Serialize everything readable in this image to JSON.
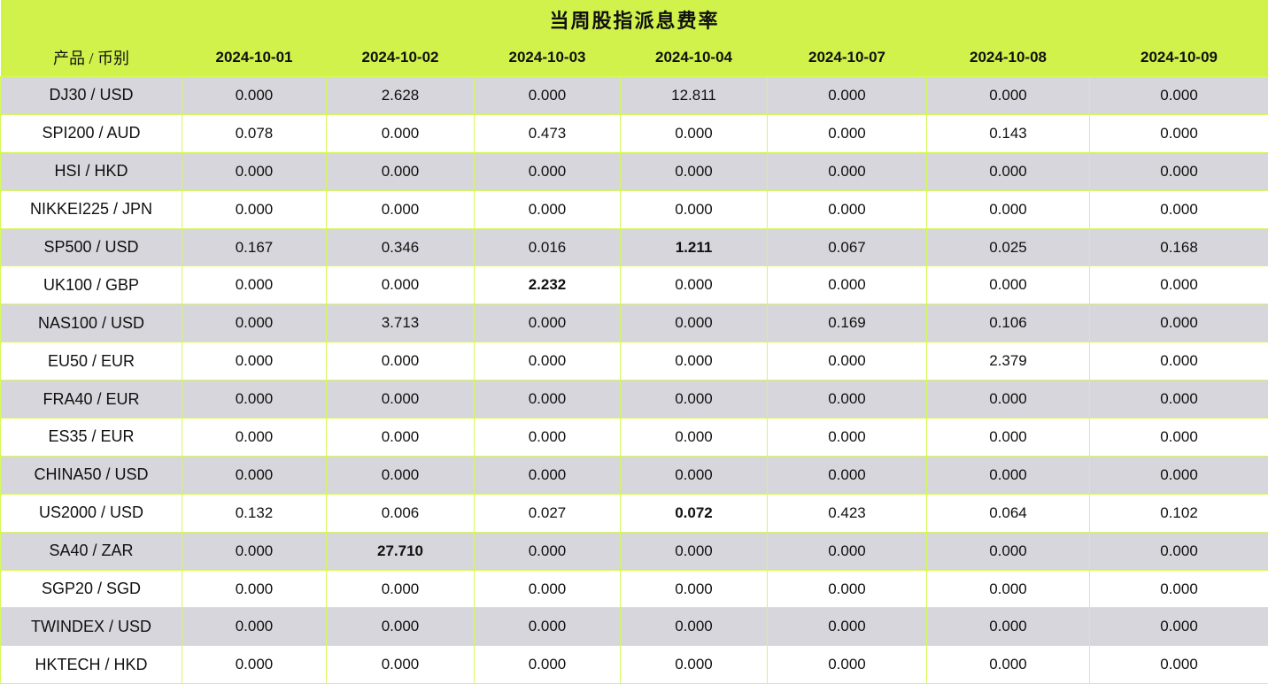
{
  "colors": {
    "header_background": "#d0f24b",
    "grid_line": "#d6f957",
    "row_alt_background": "#d6d6dc",
    "row_background": "#ffffff",
    "text": "#111111"
  },
  "chart_data": {
    "type": "table",
    "title": "当周股指派息费率",
    "columns": [
      "产品 / 币别",
      "2024-10-01",
      "2024-10-02",
      "2024-10-03",
      "2024-10-04",
      "2024-10-07",
      "2024-10-08",
      "2024-10-09"
    ],
    "rows": [
      {
        "product": "DJ30 / USD",
        "values": [
          "0.000",
          "2.628",
          "0.000",
          "12.811",
          "0.000",
          "0.000",
          "0.000"
        ],
        "bold": []
      },
      {
        "product": "SPI200 / AUD",
        "values": [
          "0.078",
          "0.000",
          "0.473",
          "0.000",
          "0.000",
          "0.143",
          "0.000"
        ],
        "bold": []
      },
      {
        "product": "HSI / HKD",
        "values": [
          "0.000",
          "0.000",
          "0.000",
          "0.000",
          "0.000",
          "0.000",
          "0.000"
        ],
        "bold": []
      },
      {
        "product": "NIKKEI225 / JPN",
        "values": [
          "0.000",
          "0.000",
          "0.000",
          "0.000",
          "0.000",
          "0.000",
          "0.000"
        ],
        "bold": []
      },
      {
        "product": "SP500 / USD",
        "values": [
          "0.167",
          "0.346",
          "0.016",
          "1.211",
          "0.067",
          "0.025",
          "0.168"
        ],
        "bold": [
          3
        ]
      },
      {
        "product": "UK100 / GBP",
        "values": [
          "0.000",
          "0.000",
          "2.232",
          "0.000",
          "0.000",
          "0.000",
          "0.000"
        ],
        "bold": [
          2
        ]
      },
      {
        "product": "NAS100 / USD",
        "values": [
          "0.000",
          "3.713",
          "0.000",
          "0.000",
          "0.169",
          "0.106",
          "0.000"
        ],
        "bold": []
      },
      {
        "product": "EU50 / EUR",
        "values": [
          "0.000",
          "0.000",
          "0.000",
          "0.000",
          "0.000",
          "2.379",
          "0.000"
        ],
        "bold": []
      },
      {
        "product": "FRA40 / EUR",
        "values": [
          "0.000",
          "0.000",
          "0.000",
          "0.000",
          "0.000",
          "0.000",
          "0.000"
        ],
        "bold": []
      },
      {
        "product": "ES35 / EUR",
        "values": [
          "0.000",
          "0.000",
          "0.000",
          "0.000",
          "0.000",
          "0.000",
          "0.000"
        ],
        "bold": []
      },
      {
        "product": "CHINA50 / USD",
        "values": [
          "0.000",
          "0.000",
          "0.000",
          "0.000",
          "0.000",
          "0.000",
          "0.000"
        ],
        "bold": []
      },
      {
        "product": "US2000 / USD",
        "values": [
          "0.132",
          "0.006",
          "0.027",
          "0.072",
          "0.423",
          "0.064",
          "0.102"
        ],
        "bold": [
          3
        ]
      },
      {
        "product": "SA40 / ZAR",
        "values": [
          "0.000",
          "27.710",
          "0.000",
          "0.000",
          "0.000",
          "0.000",
          "0.000"
        ],
        "bold": [
          1
        ]
      },
      {
        "product": "SGP20 / SGD",
        "values": [
          "0.000",
          "0.000",
          "0.000",
          "0.000",
          "0.000",
          "0.000",
          "0.000"
        ],
        "bold": []
      },
      {
        "product": "TWINDEX / USD",
        "values": [
          "0.000",
          "0.000",
          "0.000",
          "0.000",
          "0.000",
          "0.000",
          "0.000"
        ],
        "bold": []
      },
      {
        "product": "HKTECH / HKD",
        "values": [
          "0.000",
          "0.000",
          "0.000",
          "0.000",
          "0.000",
          "0.000",
          "0.000"
        ],
        "bold": []
      }
    ]
  }
}
